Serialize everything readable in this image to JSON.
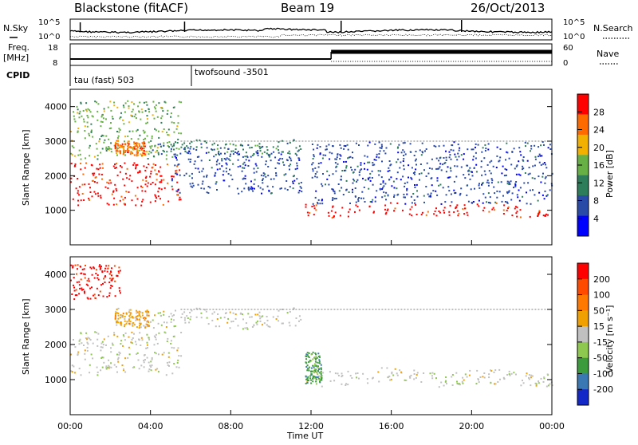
{
  "header": {
    "title": "Blackstone (fitACF)",
    "beam": "Beam 19",
    "date": "26/Oct/2013"
  },
  "noise_panel": {
    "left_label": "N.Sky",
    "right_label": "N.Search",
    "left_ticks": [
      "10^5",
      "10^0"
    ],
    "right_ticks": [
      "10^5",
      "10^0"
    ]
  },
  "freq_panel": {
    "left_label_line1": "Freq.",
    "left_label_line2": "[MHz]",
    "left_ticks": [
      "18",
      "8"
    ],
    "right_label": "Nave",
    "right_ticks": [
      "60",
      "0"
    ]
  },
  "cpid_panel": {
    "label": "CPID",
    "modes": [
      "tau (fast) 503",
      "twofsound -3501"
    ]
  },
  "colors": {
    "power_scale": [
      "#0000ff",
      "#2a4aa8",
      "#2e7d5a",
      "#66b045",
      "#f2b000",
      "#ff6a00",
      "#ff0000"
    ],
    "velocity_scale": [
      "#1428c8",
      "#3a78b4",
      "#3c9b3c",
      "#8fc84e",
      "#c0c0c0",
      "#f0a000",
      "#ff7800",
      "#ff4a00",
      "#ff0000"
    ]
  },
  "chart_data": [
    {
      "type": "heatmap",
      "name": "power",
      "xlabel": "",
      "ylabel": "Slant Range [km]",
      "y_ticks": [
        "1000",
        "2000",
        "3000",
        "4000"
      ],
      "ylim": [
        0,
        4500
      ],
      "colorbar_label": "Power [dB]",
      "colorbar_ticks": [
        "28",
        "24",
        "20",
        "16",
        "12",
        "8",
        "4"
      ],
      "features": [
        {
          "start_hour": 0,
          "end_hour": 5.5,
          "range_start_km": 1150,
          "range_end_km": 2400,
          "color_index": 6
        },
        {
          "start_hour": 0,
          "end_hour": 5.5,
          "range_start_km": 2500,
          "range_end_km": 4200,
          "color_index": 3
        },
        {
          "start_hour": 2.2,
          "end_hour": 3.8,
          "range_start_km": 2650,
          "range_end_km": 3050,
          "color_index": 5
        },
        {
          "start_hour": 4,
          "end_hour": 11.5,
          "range_start_km": 2600,
          "range_end_km": 3000,
          "color_index": 2
        },
        {
          "start_hour": 5,
          "end_hour": 11.5,
          "range_start_km": 1500,
          "range_end_km": 2800,
          "color_index": 1
        },
        {
          "start_hour": 11.7,
          "end_hour": 23.8,
          "range_start_km": 850,
          "range_end_km": 1200,
          "color_index": 6
        },
        {
          "start_hour": 12,
          "end_hour": 24,
          "range_start_km": 1200,
          "range_end_km": 3000,
          "color_index": 1
        }
      ]
    },
    {
      "type": "heatmap",
      "name": "velocity",
      "xlabel": "Time UT",
      "ylabel": "Slant Range [km]",
      "x_ticks": [
        "00:00",
        "04:00",
        "08:00",
        "12:00",
        "16:00",
        "20:00",
        "00:00"
      ],
      "xlim": [
        0,
        24
      ],
      "y_ticks": [
        "1000",
        "2000",
        "3000",
        "4000"
      ],
      "ylim": [
        0,
        4500
      ],
      "colorbar_label": "Velocity [m s⁻¹]",
      "colorbar_ticks": [
        "200",
        "100",
        "50",
        "15",
        "-15",
        "-50",
        "-100",
        "-200"
      ],
      "features": [
        {
          "start_hour": 0,
          "end_hour": 2.5,
          "range_start_km": 3300,
          "range_end_km": 4300,
          "color_index": 8
        },
        {
          "start_hour": 0,
          "end_hour": 5.5,
          "range_start_km": 1150,
          "range_end_km": 2400,
          "color_index": 4
        },
        {
          "start_hour": 2.2,
          "end_hour": 4,
          "range_start_km": 2550,
          "range_end_km": 3050,
          "color_index": 5
        },
        {
          "start_hour": 4,
          "end_hour": 11.5,
          "range_start_km": 2500,
          "range_end_km": 3000,
          "color_index": 4
        },
        {
          "start_hour": 11.7,
          "end_hour": 24,
          "range_start_km": 850,
          "range_end_km": 1300,
          "color_index": 4
        },
        {
          "start_hour": 11.7,
          "end_hour": 12.5,
          "range_start_km": 900,
          "range_end_km": 1800,
          "color_index": 2
        }
      ]
    }
  ]
}
